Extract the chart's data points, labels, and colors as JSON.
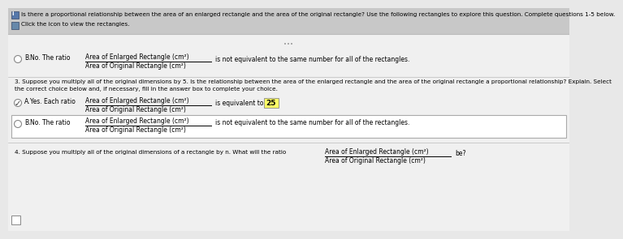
{
  "bg_color": "#e8e8e8",
  "header_bg": "#c8c8c8",
  "body_bg": "#f0f0f0",
  "header_text": "Is there a proportional relationship between the area of an enlarged rectangle and the area of the original rectangle? Use the following rectangles to explore this question. Complete questions 1-5 below.",
  "subheader_text": "Click the icon to view the rectangles.",
  "dots": "•••",
  "sec2_radio": "B.",
  "sec2_label": "No. The ratio",
  "sec2_frac_top": "Area of Enlarged Rectangle (cm²)",
  "sec2_frac_bot": "Area of Original Rectangle (cm²)",
  "sec2_suffix": "is not equivalent to the same number for all of the rectangles.",
  "sec3_header1": "3. Suppose you multiply all of the original dimensions by 5. Is the relationship between the area of the enlarged rectangle and the area of the original rectangle a proportional relationship? Explain. Select",
  "sec3_header2": "the correct choice below and, if necessary, fill in the answer box to complete your choice.",
  "sec3a_radio": "A.",
  "sec3a_label": "Yes. Each ratio",
  "sec3a_frac_top": "Area of Enlarged Rectangle (cm²)",
  "sec3a_frac_bot": "Area of Original Rectangle (cm²)",
  "sec3a_suffix": "is equivalent to",
  "sec3a_value": "25",
  "sec3a_value_bg": "#ffff66",
  "sec3b_radio": "B.",
  "sec3b_label": "No. The ratio",
  "sec3b_frac_top": "Area of Enlarged Rectangle (cm²)",
  "sec3b_frac_bot": "Area of Original Rectangle (cm²)",
  "sec3b_suffix": "is not equivalent to the same number for all of the rectangles.",
  "sec4_text": "4. Suppose you multiply all of the original dimensions of a rectangle by n. What will the ratio",
  "sec4_frac_top": "Area of Enlarged Rectangle (cm²)",
  "sec4_frac_bot": "Area of Original Rectangle (cm²)",
  "sec4_suffix": "be?",
  "text_color": "#000000",
  "gray_text": "#555555",
  "line_color": "#bbbbbb",
  "border_color": "#aaaaaa"
}
